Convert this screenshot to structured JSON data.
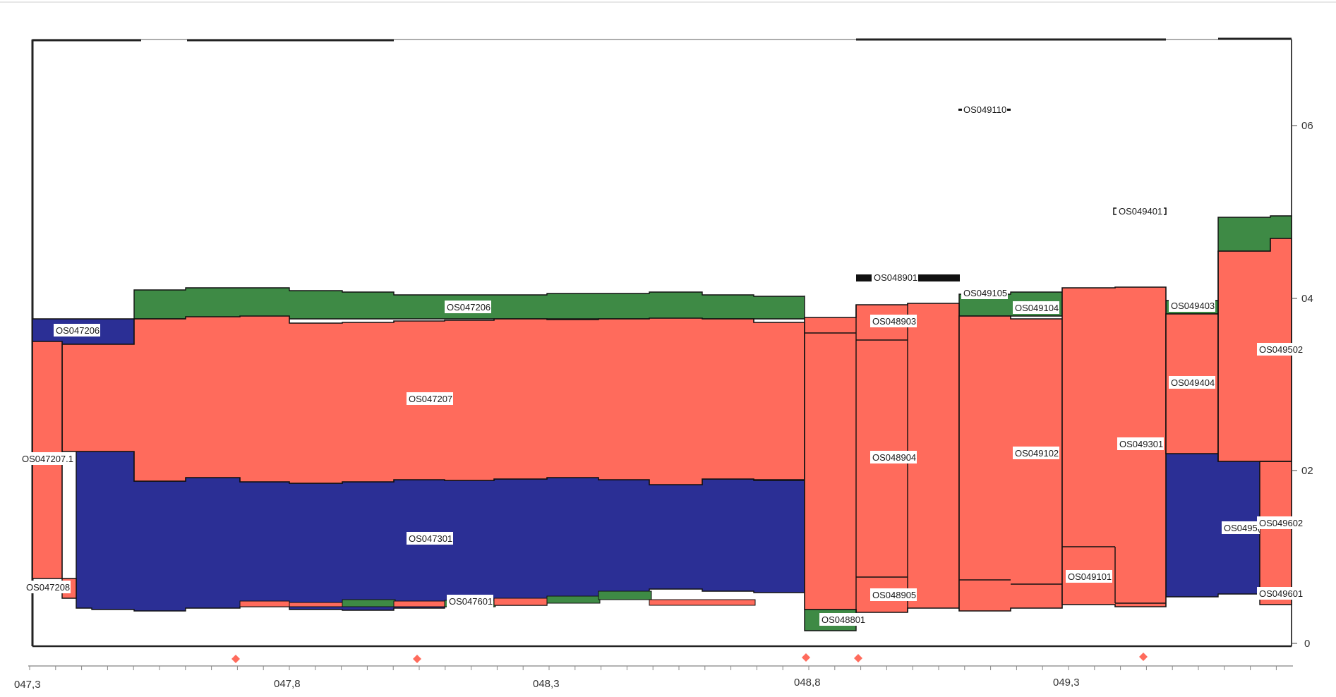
{
  "colors": {
    "red": "#ff6b5c",
    "blue": "#2b2f95",
    "green": "#3e8a45",
    "outline": "#111111",
    "marker": "#ff6b5c"
  },
  "x_axis": {
    "ticks": [
      "047,3",
      "047,8",
      "048,3",
      "048,8",
      "049,3"
    ]
  },
  "y_axis": {
    "ticks": [
      "06",
      "04",
      "02",
      "0"
    ]
  },
  "labels": {
    "os047206": "OS047206",
    "os047207": "OS047207",
    "os047207_1": "OS047207.1",
    "os047208": "OS047208",
    "os047301": "OS047301",
    "os047601": "OS047601",
    "os048801": "OS048801",
    "os048901": "OS048901",
    "os048903": "OS048903",
    "os048904": "OS048904",
    "os048905": "OS048905",
    "os049101": "OS049101",
    "os049102": "OS049102",
    "os049104": "OS049104",
    "os049105": "OS049105",
    "os049110": "OS049110",
    "os049301": "OS049301",
    "os049401": "OS049401",
    "os049403": "OS049403",
    "os049404": "OS049404",
    "os049502": "OS049502",
    "os049501": "OS0495(",
    "os049601": "OS049601",
    "os049602": "OS049602"
  }
}
